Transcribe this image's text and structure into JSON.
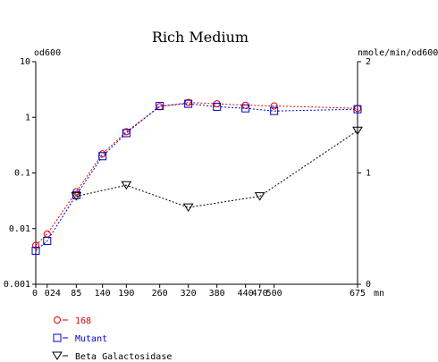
{
  "chart_data": {
    "type": "line",
    "title": "Rich Medium",
    "ylabel_left": "od600",
    "ylabel_right": "nmole/min/od600",
    "xlabel": "mn",
    "x_ticks": [
      0,
      24,
      85,
      140,
      190,
      260,
      320,
      380,
      440,
      470,
      500,
      675
    ],
    "x_tick_labels": [
      "0",
      "024",
      "85",
      "140",
      "190",
      "260",
      "320",
      "380",
      "440",
      "470",
      "500",
      "675"
    ],
    "xlim": [
      0,
      675
    ],
    "y_left": {
      "scale": "log",
      "ylim": [
        0.001,
        10
      ],
      "ticks": [
        0.001,
        0.01,
        0.1,
        1,
        10
      ],
      "tick_labels": [
        "0.001",
        "0.01",
        "0.1",
        "1",
        "10"
      ]
    },
    "y_right": {
      "scale": "linear",
      "ylim": [
        0,
        2
      ],
      "ticks": [
        0,
        1,
        2
      ],
      "tick_labels": [
        "0",
        "1",
        "2"
      ]
    },
    "series": [
      {
        "name": "168",
        "axis": "left",
        "marker": "circle",
        "color": "#dd0000",
        "x": [
          0,
          24,
          85,
          140,
          190,
          260,
          320,
          380,
          440,
          500,
          675
        ],
        "y": [
          0.005,
          0.008,
          0.046,
          0.22,
          0.55,
          1.55,
          1.85,
          1.75,
          1.65,
          1.6,
          1.45
        ]
      },
      {
        "name": "Mutant",
        "axis": "left",
        "marker": "square",
        "color": "#0000cc",
        "x": [
          0,
          24,
          85,
          140,
          190,
          260,
          320,
          380,
          440,
          500,
          675
        ],
        "y": [
          0.004,
          0.006,
          0.04,
          0.2,
          0.52,
          1.6,
          1.75,
          1.55,
          1.45,
          1.3,
          1.4
        ]
      },
      {
        "name": "Beta Galactosidase",
        "axis": "right",
        "marker": "triangle-down",
        "color": "#000000",
        "x": [
          85,
          190,
          320,
          470,
          675
        ],
        "y": [
          0.79,
          0.89,
          0.69,
          0.79,
          1.38
        ]
      }
    ],
    "legend_position": "bottom-left",
    "grid": false
  }
}
